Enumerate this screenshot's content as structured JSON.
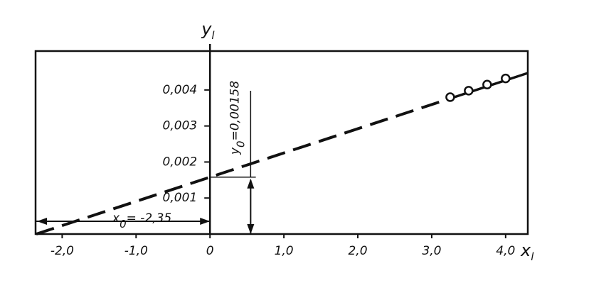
{
  "chart_data": {
    "type": "line",
    "x_label": {
      "base": "x",
      "sub": "l"
    },
    "y_label": {
      "base": "y",
      "sub": "l"
    },
    "xlim": [
      -2.36,
      4.3
    ],
    "ylim": [
      0,
      0.00508
    ],
    "xticks": [
      {
        "value": -2,
        "label": "-2,0"
      },
      {
        "value": -1,
        "label": "-1,0"
      },
      0,
      {
        "value": 1,
        "label": "1,0"
      },
      {
        "value": 2,
        "label": "2,0"
      },
      {
        "value": 3,
        "label": "3,0"
      },
      {
        "value": 4,
        "label": "4,0"
      }
    ],
    "yticks": [
      {
        "value": 0.001,
        "label": "0,001"
      },
      {
        "value": 0.002,
        "label": "0,002"
      },
      {
        "value": 0.003,
        "label": "0,003"
      },
      {
        "value": 0.004,
        "label": "0,004"
      }
    ],
    "color": "#111111",
    "fit": {
      "x": [
        -2.35,
        3.2,
        4.3
      ],
      "values": [
        0,
        0.00373,
        0.00447
      ]
    },
    "points": {
      "x": [
        3.25,
        3.5,
        3.75,
        4.0
      ],
      "values": [
        0.0038,
        0.00398,
        0.00415,
        0.00432
      ]
    },
    "annotations": {
      "x0": {
        "base": "x",
        "sub": "0",
        "text": "= -2,35",
        "value": -2.35
      },
      "y0": {
        "base": "y",
        "sub": "0",
        "text": "=0,00158",
        "value": 0.00158
      }
    }
  }
}
